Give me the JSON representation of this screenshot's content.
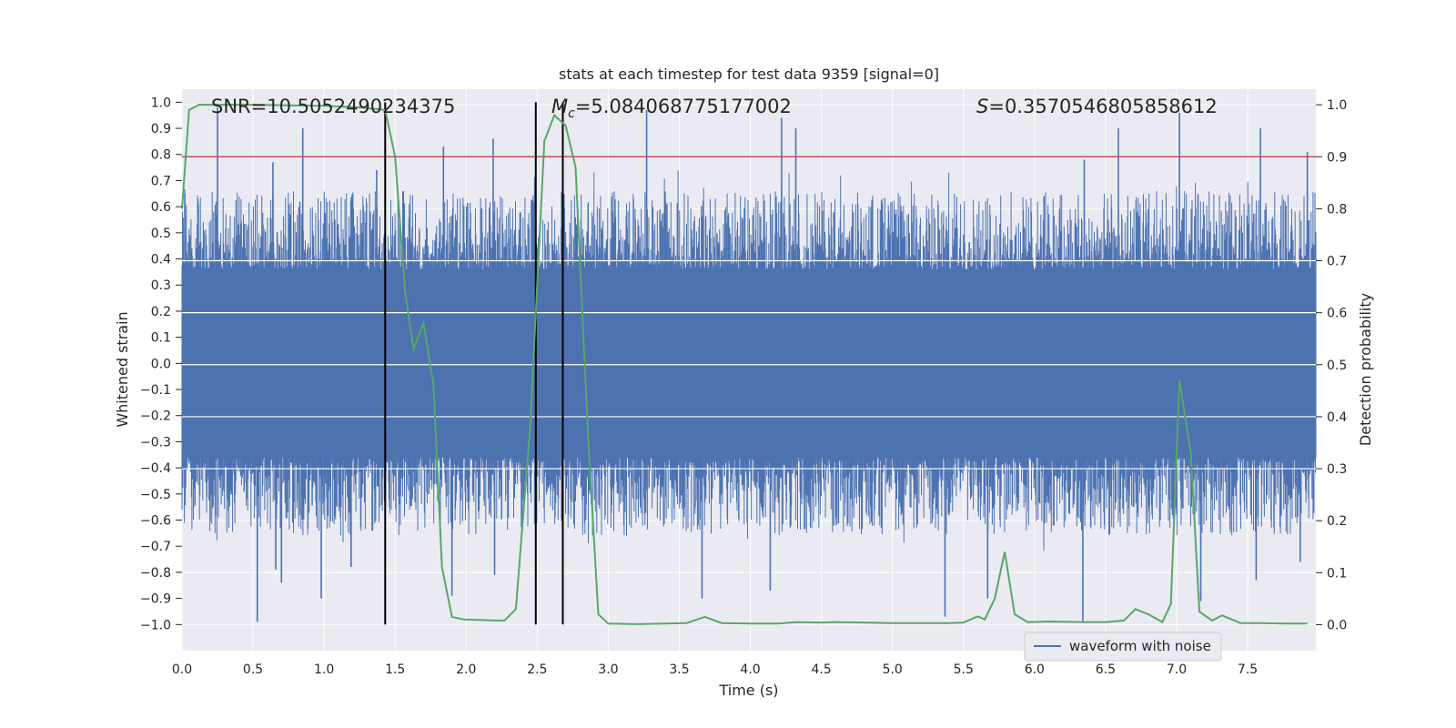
{
  "chart_data": {
    "type": "line",
    "title": "stats at each timestep for test data 9359 [signal=0]",
    "xlabel": "Time (s)",
    "ylabel_left": "Whitened strain",
    "ylabel_right": "Detection probability",
    "xlim": [
      0.0,
      7.98
    ],
    "ylim_left": [
      -1.1,
      1.05
    ],
    "ylim_right": [
      -0.05,
      1.03
    ],
    "x_ticks": [
      "0.0",
      "0.5",
      "1.0",
      "1.5",
      "2.0",
      "2.5",
      "3.0",
      "3.5",
      "4.0",
      "4.5",
      "5.0",
      "5.5",
      "6.0",
      "6.5",
      "7.0",
      "7.5"
    ],
    "y_left_ticks": [
      "1.0",
      "0.9",
      "0.8",
      "0.7",
      "0.6",
      "0.5",
      "0.4",
      "0.3",
      "0.2",
      "0.1",
      "0.0",
      "−0.1",
      "−0.2",
      "−0.3",
      "−0.4",
      "−0.5",
      "−0.6",
      "−0.7",
      "−0.8",
      "−0.9",
      "−1.0"
    ],
    "y_right_ticks": [
      "1.0",
      "0.9",
      "0.8",
      "0.7",
      "0.6",
      "0.5",
      "0.4",
      "0.3",
      "0.2",
      "0.1",
      "0.0"
    ],
    "annotations": {
      "snr": "SNR=10.5052490234375",
      "mc_symbol": "M",
      "mc_sub": "c",
      "mc_value": "=5.084068775177002",
      "s_symbol": "S",
      "s_value": "=0.3570546805858612"
    },
    "threshold": 0.9,
    "vlines": [
      1.43,
      2.49,
      2.68
    ],
    "legend": [
      "waveform with noise"
    ],
    "colors": {
      "waveform": "#4c72b0",
      "probability": "#55a868",
      "threshold": "#c44e52",
      "vline": "#000000",
      "plot_bg": "#eaeaf2",
      "grid": "#ffffff"
    },
    "series": [
      {
        "name": "waveform with noise",
        "style": "dense noisy strain, core band about ±0.4 with spikes",
        "peaks": [
          {
            "x": 0.02,
            "v": 0.65
          },
          {
            "x": 0.25,
            "v": 0.98
          },
          {
            "x": 0.64,
            "v": 0.77
          },
          {
            "x": 0.85,
            "v": 0.9
          },
          {
            "x": 1.37,
            "v": 0.74
          },
          {
            "x": 1.84,
            "v": 0.83
          },
          {
            "x": 2.19,
            "v": 0.86
          },
          {
            "x": 3.27,
            "v": 0.97
          },
          {
            "x": 4.22,
            "v": 0.94
          },
          {
            "x": 4.32,
            "v": 0.9
          },
          {
            "x": 6.35,
            "v": 0.78
          },
          {
            "x": 6.59,
            "v": 0.9
          },
          {
            "x": 7.02,
            "v": 0.96
          },
          {
            "x": 7.59,
            "v": 0.9
          },
          {
            "x": 7.92,
            "v": 0.81
          }
        ],
        "troughs": [
          {
            "x": 0.53,
            "v": -0.99
          },
          {
            "x": 0.66,
            "v": -0.79
          },
          {
            "x": 0.7,
            "v": -0.84
          },
          {
            "x": 0.98,
            "v": -0.9
          },
          {
            "x": 1.19,
            "v": -0.78
          },
          {
            "x": 1.9,
            "v": -0.89
          },
          {
            "x": 2.2,
            "v": -0.81
          },
          {
            "x": 3.66,
            "v": -0.9
          },
          {
            "x": 4.14,
            "v": -0.87
          },
          {
            "x": 5.37,
            "v": -0.97
          },
          {
            "x": 5.67,
            "v": -0.9
          },
          {
            "x": 6.34,
            "v": -0.99
          },
          {
            "x": 7.17,
            "v": -0.91
          },
          {
            "x": 7.56,
            "v": -0.83
          },
          {
            "x": 7.87,
            "v": -0.76
          }
        ]
      },
      {
        "name": "detection probability",
        "axis": "right",
        "x": [
          0.0,
          0.05,
          0.12,
          0.25,
          0.5,
          0.75,
          1.0,
          1.25,
          1.32,
          1.43,
          1.5,
          1.57,
          1.63,
          1.7,
          1.77,
          1.83,
          1.9,
          1.98,
          2.1,
          2.2,
          2.27,
          2.35,
          2.45,
          2.55,
          2.62,
          2.7,
          2.77,
          2.86,
          2.93,
          3.0,
          3.2,
          3.4,
          3.55,
          3.68,
          3.8,
          4.0,
          4.2,
          4.33,
          4.5,
          4.6,
          4.8,
          5.0,
          5.2,
          5.4,
          5.5,
          5.6,
          5.65,
          5.72,
          5.79,
          5.86,
          5.95,
          6.1,
          6.35,
          6.5,
          6.63,
          6.71,
          6.8,
          6.9,
          6.96,
          7.02,
          7.1,
          7.16,
          7.25,
          7.32,
          7.45,
          7.6,
          7.75,
          7.92
        ],
        "values": [
          0.8,
          0.99,
          1.0,
          1.0,
          1.0,
          0.999,
          0.998,
          0.995,
          0.993,
          0.99,
          0.9,
          0.64,
          0.53,
          0.58,
          0.46,
          0.11,
          0.015,
          0.01,
          0.009,
          0.008,
          0.008,
          0.03,
          0.38,
          0.93,
          0.98,
          0.96,
          0.88,
          0.35,
          0.02,
          0.002,
          0.001,
          0.002,
          0.003,
          0.015,
          0.003,
          0.002,
          0.002,
          0.005,
          0.004,
          0.005,
          0.004,
          0.003,
          0.003,
          0.003,
          0.004,
          0.016,
          0.01,
          0.05,
          0.14,
          0.02,
          0.005,
          0.006,
          0.005,
          0.005,
          0.008,
          0.03,
          0.02,
          0.005,
          0.04,
          0.47,
          0.33,
          0.025,
          0.008,
          0.018,
          0.003,
          0.003,
          0.002,
          0.002
        ]
      }
    ]
  }
}
